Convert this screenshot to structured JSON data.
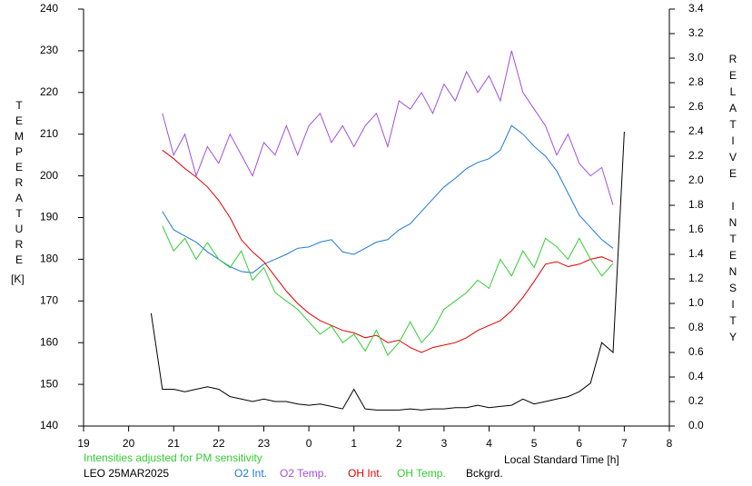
{
  "chart_data": {
    "type": "line",
    "ylabel": "TEMPERATURE",
    "yunit": "[K]",
    "y2label": "RELATIVE INTENSITY",
    "xlabel": "Local Standard Time [h]",
    "annotations": [
      "Intensities adjusted for PM sensitivity",
      "LEO 25MAR2025"
    ],
    "xlim": [
      19,
      32
    ],
    "xticks": [
      19,
      20,
      21,
      22,
      23,
      {
        "value": 24,
        "label": "0"
      },
      {
        "value": 25,
        "label": "1"
      },
      {
        "value": 26,
        "label": "2"
      },
      {
        "value": 27,
        "label": "3"
      },
      {
        "value": 28,
        "label": "4"
      },
      {
        "value": 29,
        "label": "5"
      },
      {
        "value": 30,
        "label": "6"
      },
      {
        "value": 31,
        "label": "7"
      },
      {
        "value": 32,
        "label": "8"
      }
    ],
    "ylim": [
      140,
      240
    ],
    "yticks": [
      140,
      150,
      160,
      170,
      180,
      190,
      200,
      210,
      220,
      230,
      240
    ],
    "y2lim": [
      0,
      3.4
    ],
    "y2ticks": [
      {
        "value": 0,
        "label": "0.0"
      },
      0.2,
      0.4,
      0.6,
      0.8,
      {
        "value": 1,
        "label": "1.0"
      },
      1.2,
      1.4,
      1.6,
      1.8,
      {
        "value": 2,
        "label": "2.0"
      },
      2.2,
      2.4,
      2.6,
      2.8,
      {
        "value": 3,
        "label": "3.0"
      },
      3.2,
      3.4
    ],
    "x": [
      20.5,
      20.75,
      21,
      21.25,
      21.5,
      21.75,
      22,
      22.25,
      22.5,
      22.75,
      23,
      23.25,
      23.5,
      23.75,
      24,
      24.25,
      24.5,
      24.75,
      25,
      25.25,
      25.5,
      25.75,
      26,
      26.25,
      26.5,
      26.75,
      27,
      27.25,
      27.5,
      27.75,
      28,
      28.25,
      28.5,
      28.75,
      29,
      29.25,
      29.5,
      29.75,
      30,
      30.25,
      30.5,
      30.75,
      31
    ],
    "series": [
      {
        "name": "O2 Int.",
        "color": "#1e78d8",
        "axis": "y2",
        "values": [
          null,
          1.75,
          1.6,
          1.55,
          1.5,
          1.42,
          1.36,
          1.3,
          1.26,
          1.25,
          1.32,
          1.36,
          1.4,
          1.45,
          1.46,
          1.5,
          1.52,
          1.42,
          1.4,
          1.45,
          1.5,
          1.52,
          1.6,
          1.65,
          1.75,
          1.85,
          1.95,
          2.02,
          2.1,
          2.15,
          2.18,
          2.25,
          2.45,
          2.38,
          2.28,
          2.2,
          2.08,
          1.9,
          1.72,
          1.62,
          1.52,
          1.45,
          null
        ]
      },
      {
        "name": "O2 Temp.",
        "color": "#a050d8",
        "axis": "y",
        "values": [
          null,
          215,
          205,
          210,
          200,
          207,
          203,
          210,
          205,
          200,
          208,
          205,
          212,
          205,
          212,
          215,
          208,
          212,
          207,
          212,
          215,
          207,
          218,
          216,
          220,
          215,
          222,
          218,
          225,
          220,
          224,
          218,
          230,
          220,
          216,
          212,
          205,
          210,
          203,
          200,
          202,
          193,
          null
        ]
      },
      {
        "name": "OH Int.",
        "color": "#e00000",
        "axis": "y2",
        "values": [
          null,
          2.25,
          2.18,
          2.1,
          2.03,
          1.95,
          1.84,
          1.7,
          1.52,
          1.42,
          1.34,
          1.22,
          1.1,
          1.0,
          0.92,
          0.86,
          0.82,
          0.78,
          0.76,
          0.72,
          0.74,
          0.68,
          0.7,
          0.64,
          0.6,
          0.64,
          0.66,
          0.68,
          0.72,
          0.78,
          0.82,
          0.86,
          0.94,
          1.05,
          1.18,
          1.32,
          1.34,
          1.3,
          1.32,
          1.36,
          1.38,
          1.34,
          null
        ]
      },
      {
        "name": "OH Temp.",
        "color": "#33cc33",
        "axis": "y",
        "values": [
          null,
          188,
          182,
          185,
          180,
          184,
          180,
          178,
          182,
          175,
          178,
          172,
          170,
          168,
          165,
          162,
          164,
          160,
          162,
          158,
          163,
          157,
          160,
          165,
          160,
          163,
          168,
          170,
          172,
          175,
          173,
          180,
          176,
          182,
          178,
          185,
          183,
          180,
          185,
          180,
          176,
          179,
          null
        ]
      },
      {
        "name": "Bckgrd.",
        "color": "#000000",
        "axis": "y2",
        "values": [
          0.92,
          0.3,
          0.3,
          0.28,
          0.3,
          0.32,
          0.3,
          0.24,
          0.22,
          0.2,
          0.22,
          0.2,
          0.2,
          0.18,
          0.17,
          0.18,
          0.16,
          0.14,
          0.3,
          0.14,
          0.13,
          0.13,
          0.13,
          0.14,
          0.13,
          0.14,
          0.14,
          0.15,
          0.15,
          0.17,
          0.15,
          0.16,
          0.17,
          0.22,
          0.18,
          0.2,
          0.22,
          0.24,
          0.28,
          0.35,
          0.68,
          0.6,
          2.4
        ]
      }
    ]
  }
}
